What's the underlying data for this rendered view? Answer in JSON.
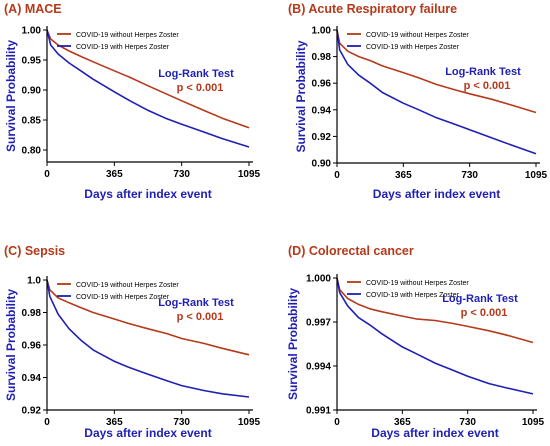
{
  "chart_data": [
    {
      "type": "line",
      "panel_title": "(A) MACE",
      "xlabel": "Days after index event",
      "ylabel": "Survival Probability",
      "xlim": [
        0,
        1095
      ],
      "ylim": [
        0.78,
        1.0
      ],
      "xticks": [
        0,
        365,
        730,
        1095
      ],
      "yticks": [
        0.8,
        0.85,
        0.9,
        0.95,
        1.0
      ],
      "ytick_labels": [
        "0.80",
        "0.85",
        "0.90",
        "0.95",
        "1.00"
      ],
      "legend_position": "top-left",
      "annotation": {
        "title": "Log-Rank Test",
        "pvalue": "p < 0.001"
      },
      "series": [
        {
          "name": "COVID-19 without Herpes Zoster",
          "color": "#b5391a",
          "x": [
            0,
            20,
            60,
            120,
            183,
            250,
            365,
            450,
            548,
            650,
            730,
            850,
            950,
            1095
          ],
          "y": [
            1.0,
            0.985,
            0.975,
            0.965,
            0.956,
            0.947,
            0.932,
            0.921,
            0.907,
            0.893,
            0.882,
            0.866,
            0.853,
            0.837
          ]
        },
        {
          "name": "COVID-19 with Herpes Zoster",
          "color": "#1f1fb4",
          "x": [
            0,
            20,
            60,
            120,
            183,
            250,
            365,
            450,
            548,
            650,
            730,
            850,
            950,
            1095
          ],
          "y": [
            1.0,
            0.975,
            0.96,
            0.945,
            0.932,
            0.918,
            0.897,
            0.882,
            0.866,
            0.852,
            0.843,
            0.83,
            0.819,
            0.805
          ]
        }
      ]
    },
    {
      "type": "line",
      "panel_title": "(B) Acute Respiratory failure",
      "xlabel": "Days after index event",
      "ylabel": "Survival Probability",
      "xlim": [
        0,
        1095
      ],
      "ylim": [
        0.9,
        1.0
      ],
      "xticks": [
        0,
        365,
        730,
        1095
      ],
      "yticks": [
        0.9,
        0.92,
        0.94,
        0.96,
        0.98,
        1.0
      ],
      "ytick_labels": [
        "0.90",
        "0.92",
        "0.94",
        "0.96",
        "0.98",
        "1.00"
      ],
      "legend_position": "top-left",
      "annotation": {
        "title": "Log-Rank Test",
        "pvalue": "p < 0.001"
      },
      "series": [
        {
          "name": "COVID-19 without Herpes Zoster",
          "color": "#b5391a",
          "x": [
            0,
            15,
            60,
            120,
            183,
            250,
            365,
            450,
            548,
            650,
            730,
            850,
            950,
            1095
          ],
          "y": [
            1.0,
            0.99,
            0.984,
            0.98,
            0.977,
            0.973,
            0.968,
            0.964,
            0.959,
            0.955,
            0.952,
            0.948,
            0.944,
            0.938
          ]
        },
        {
          "name": "COVID-19 with Herpes Zoster",
          "color": "#1f1fb4",
          "x": [
            0,
            15,
            60,
            120,
            183,
            250,
            365,
            450,
            548,
            650,
            730,
            850,
            950,
            1095
          ],
          "y": [
            1.0,
            0.985,
            0.974,
            0.966,
            0.96,
            0.953,
            0.945,
            0.94,
            0.934,
            0.929,
            0.925,
            0.919,
            0.914,
            0.907
          ]
        }
      ]
    },
    {
      "type": "line",
      "panel_title": "(C) Sepsis",
      "xlabel": "Days after index event",
      "ylabel": "Survival Probability",
      "xlim": [
        0,
        1095
      ],
      "ylim": [
        0.92,
        1.0
      ],
      "xticks": [
        0,
        365,
        730,
        1095
      ],
      "yticks": [
        0.92,
        0.94,
        0.96,
        0.98,
        1.0
      ],
      "ytick_labels": [
        "0.92",
        "0.94",
        "0.96",
        "0.98",
        "1.0"
      ],
      "legend_position": "top-left",
      "annotation": {
        "title": "Log-Rank Test",
        "pvalue": "p < 0.001"
      },
      "series": [
        {
          "name": "COVID-19 without Herpes Zoster",
          "color": "#b5391a",
          "x": [
            0,
            15,
            60,
            120,
            183,
            250,
            365,
            450,
            548,
            650,
            730,
            850,
            950,
            1095
          ],
          "y": [
            1.0,
            0.994,
            0.989,
            0.986,
            0.983,
            0.98,
            0.976,
            0.973,
            0.97,
            0.967,
            0.964,
            0.961,
            0.958,
            0.954
          ]
        },
        {
          "name": "COVID-19 with Herpes Zoster",
          "color": "#1f1fb4",
          "x": [
            0,
            15,
            60,
            120,
            183,
            250,
            365,
            450,
            548,
            650,
            730,
            850,
            950,
            1095
          ],
          "y": [
            1.0,
            0.99,
            0.979,
            0.97,
            0.963,
            0.957,
            0.95,
            0.946,
            0.942,
            0.938,
            0.935,
            0.932,
            0.93,
            0.928
          ]
        }
      ]
    },
    {
      "type": "line",
      "panel_title": "(D) Colorectal cancer",
      "xlabel": "Days after index event",
      "ylabel": "Survival Probability",
      "xlim": [
        0,
        1095
      ],
      "ylim": [
        0.991,
        1.0
      ],
      "xticks": [
        0,
        365,
        730,
        1095
      ],
      "yticks": [
        0.991,
        0.994,
        0.997,
        1.0
      ],
      "ytick_labels": [
        "0.991",
        "0.994",
        "0.997",
        "1.000"
      ],
      "legend_position": "top-left",
      "annotation": {
        "title": "Log-Rank Test",
        "pvalue": "p < 0.001"
      },
      "series": [
        {
          "name": "COVID-19 without Herpes Zoster",
          "color": "#b5391a",
          "x": [
            0,
            15,
            60,
            120,
            183,
            250,
            365,
            450,
            548,
            650,
            730,
            850,
            950,
            1095
          ],
          "y": [
            1.0,
            0.9992,
            0.9986,
            0.9982,
            0.9979,
            0.9977,
            0.9974,
            0.9972,
            0.9971,
            0.9969,
            0.9967,
            0.9964,
            0.9961,
            0.9956
          ]
        },
        {
          "name": "COVID-19 with Herpes Zoster",
          "color": "#1f1fb4",
          "x": [
            0,
            15,
            60,
            120,
            183,
            250,
            365,
            450,
            548,
            650,
            730,
            850,
            950,
            1095
          ],
          "y": [
            1.0,
            0.999,
            0.9981,
            0.9973,
            0.9968,
            0.9962,
            0.9953,
            0.9948,
            0.9942,
            0.9937,
            0.9933,
            0.9928,
            0.9925,
            0.9921
          ]
        }
      ]
    }
  ]
}
